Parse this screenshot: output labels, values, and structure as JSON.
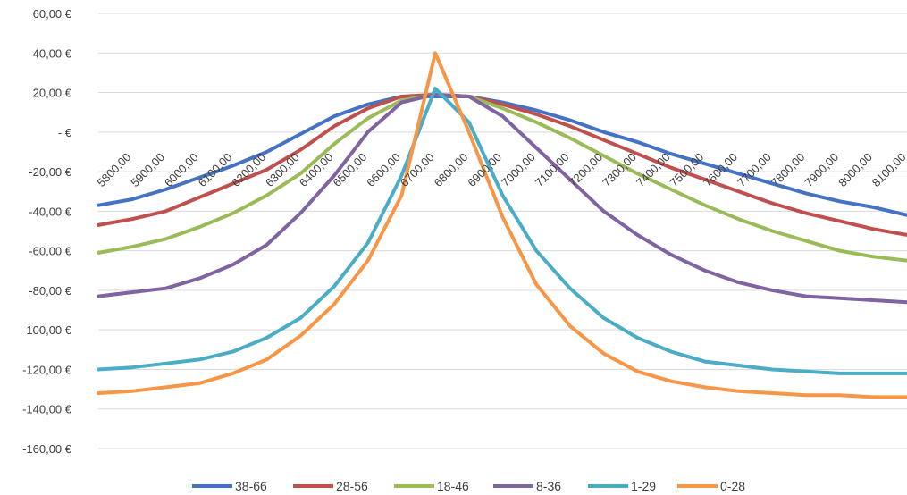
{
  "chart_data": {
    "type": "line",
    "title": "",
    "xlabel": "",
    "ylabel": "",
    "ylim": [
      -160,
      60
    ],
    "y_ticks": [
      {
        "value": 60,
        "label": "60,00 €"
      },
      {
        "value": 40,
        "label": "40,00 €"
      },
      {
        "value": 20,
        "label": "20,00 €"
      },
      {
        "value": 0,
        "label": "-   €"
      },
      {
        "value": -20,
        "label": "-20,00 €"
      },
      {
        "value": -40,
        "label": "-40,00 €"
      },
      {
        "value": -60,
        "label": "-60,00 €"
      },
      {
        "value": -80,
        "label": "-80,00 €"
      },
      {
        "value": -100,
        "label": "-100,00 €"
      },
      {
        "value": -120,
        "label": "-120,00 €"
      },
      {
        "value": -140,
        "label": "-140,00 €"
      },
      {
        "value": -160,
        "label": "-160,00 €"
      }
    ],
    "x_ticks": [
      {
        "value": 5800,
        "label": "5800,00"
      },
      {
        "value": 5900,
        "label": "5900,00"
      },
      {
        "value": 6000,
        "label": "6000,00"
      },
      {
        "value": 6100,
        "label": "6100,00"
      },
      {
        "value": 6200,
        "label": "6200,00"
      },
      {
        "value": 6300,
        "label": "6300,00"
      },
      {
        "value": 6400,
        "label": "6400,00"
      },
      {
        "value": 6500,
        "label": "6500,00"
      },
      {
        "value": 6600,
        "label": "6600,00"
      },
      {
        "value": 6700,
        "label": "6700,00"
      },
      {
        "value": 6800,
        "label": "6800,00"
      },
      {
        "value": 6900,
        "label": "6900,00"
      },
      {
        "value": 7000,
        "label": "7000,00"
      },
      {
        "value": 7100,
        "label": "7100,00"
      },
      {
        "value": 7200,
        "label": "7200,00"
      },
      {
        "value": 7300,
        "label": "7300,00"
      },
      {
        "value": 7400,
        "label": "7400,00"
      },
      {
        "value": 7500,
        "label": "7500,00"
      },
      {
        "value": 7600,
        "label": "7600,00"
      },
      {
        "value": 7700,
        "label": "7700,00"
      },
      {
        "value": 7800,
        "label": "7800,00"
      },
      {
        "value": 7900,
        "label": "7900,00"
      },
      {
        "value": 8000,
        "label": "8000,00"
      },
      {
        "value": 8100,
        "label": "8100,00"
      }
    ],
    "xlim": [
      5800,
      8200
    ],
    "grid": "horizontal",
    "legend_position": "bottom",
    "x": [
      5800,
      5900,
      6000,
      6100,
      6200,
      6300,
      6400,
      6500,
      6600,
      6700,
      6800,
      6900,
      7000,
      7100,
      7200,
      7300,
      7400,
      7500,
      7600,
      7700,
      7800,
      7900,
      8000,
      8100,
      8200
    ],
    "series": [
      {
        "name": "38-66",
        "color": "#4472C4",
        "values": [
          -37,
          -34,
          -29,
          -23,
          -17,
          -10,
          -1,
          8,
          14,
          18,
          18,
          18,
          15,
          11,
          6,
          0,
          -5,
          -11,
          -16,
          -21,
          -26,
          -31,
          -35,
          -38,
          -42
        ]
      },
      {
        "name": "28-56",
        "color": "#C0504D",
        "values": [
          -47,
          -44,
          -40,
          -33,
          -26,
          -19,
          -9,
          3,
          12,
          18,
          19,
          18,
          14,
          9,
          3,
          -4,
          -11,
          -18,
          -24,
          -30,
          -36,
          -41,
          -45,
          -49,
          -52
        ]
      },
      {
        "name": "18-46",
        "color": "#9BBB59",
        "values": [
          -61,
          -58,
          -54,
          -48,
          -41,
          -32,
          -21,
          -6,
          7,
          16,
          19,
          18,
          12,
          5,
          -3,
          -12,
          -21,
          -29,
          -37,
          -44,
          -50,
          -55,
          -60,
          -63,
          -65
        ]
      },
      {
        "name": "8-36",
        "color": "#8064A2",
        "values": [
          -83,
          -81,
          -79,
          -74,
          -67,
          -57,
          -41,
          -22,
          0,
          15,
          19,
          18,
          8,
          -8,
          -24,
          -40,
          -52,
          -62,
          -70,
          -76,
          -80,
          -83,
          -84,
          -85,
          -86
        ]
      },
      {
        "name": "1-29",
        "color": "#4BACC6",
        "values": [
          -120,
          -119,
          -117,
          -115,
          -111,
          -104,
          -94,
          -78,
          -56,
          -22,
          22,
          5,
          -32,
          -60,
          -79,
          -94,
          -104,
          -111,
          -116,
          -118,
          -120,
          -121,
          -122,
          -122,
          -122
        ]
      },
      {
        "name": "0-28",
        "color": "#F79646",
        "values": [
          -132,
          -131,
          -129,
          -127,
          -122,
          -115,
          -103,
          -87,
          -65,
          -32,
          40,
          0,
          -43,
          -77,
          -98,
          -112,
          -121,
          -126,
          -129,
          -131,
          -132,
          -133,
          -133,
          -134,
          -134
        ]
      }
    ]
  }
}
